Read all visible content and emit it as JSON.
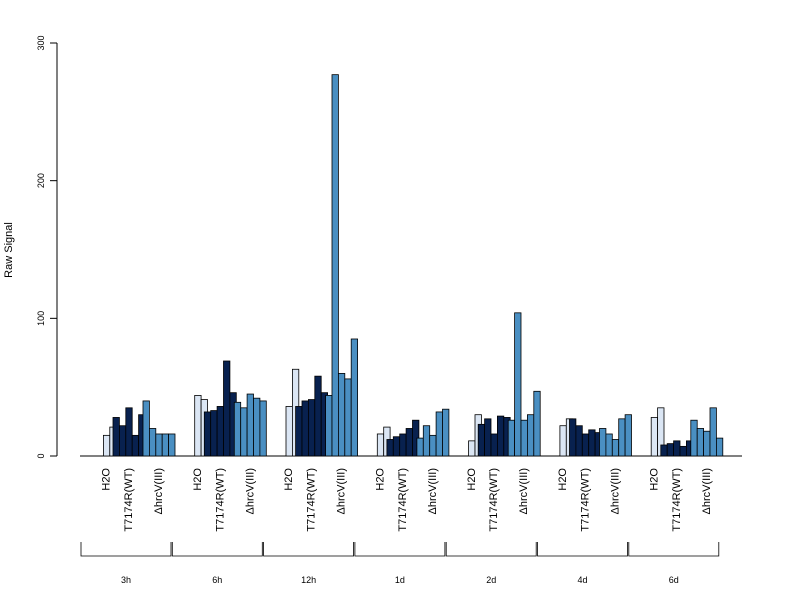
{
  "chart_data": {
    "type": "bar",
    "ylabel": "Raw Signal",
    "ylim": [
      0,
      300
    ],
    "yticks": [
      "0",
      "100",
      "200",
      "300"
    ],
    "group_labels": [
      "H2O",
      "T7174R(WT)",
      "ΔhrcV(III)"
    ],
    "group_colors": [
      "#dbe6f4",
      "#08214f",
      "#4a8fc2"
    ],
    "timepoints": [
      {
        "label": "3h",
        "groups": [
          [
            null,
            15,
            21
          ],
          [
            28,
            22,
            35,
            15,
            30
          ],
          [
            40,
            20,
            16,
            16,
            16
          ]
        ]
      },
      {
        "label": "6h",
        "groups": [
          [
            null,
            44,
            41
          ],
          [
            32,
            33,
            36,
            69,
            46
          ],
          [
            39,
            35,
            45,
            42,
            40
          ]
        ]
      },
      {
        "label": "12h",
        "groups": [
          [
            null,
            36,
            63
          ],
          [
            36,
            40,
            41,
            58,
            46
          ],
          [
            44,
            277,
            60,
            56,
            85
          ]
        ]
      },
      {
        "label": "1d",
        "groups": [
          [
            null,
            16,
            21
          ],
          [
            12,
            14,
            16,
            20,
            26
          ],
          [
            13,
            22,
            15,
            32,
            34
          ]
        ]
      },
      {
        "label": "2d",
        "groups": [
          [
            null,
            11,
            30
          ],
          [
            23,
            27,
            16,
            29,
            28
          ],
          [
            26,
            104,
            26,
            30,
            47
          ]
        ]
      },
      {
        "label": "4d",
        "groups": [
          [
            null,
            22,
            27
          ],
          [
            27,
            22,
            16,
            19,
            17
          ],
          [
            20,
            16,
            12,
            27,
            30
          ]
        ]
      },
      {
        "label": "6d",
        "groups": [
          [
            null,
            28,
            35
          ],
          [
            8,
            9,
            11,
            7,
            11
          ],
          [
            26,
            20,
            18,
            35,
            13
          ]
        ]
      }
    ]
  }
}
